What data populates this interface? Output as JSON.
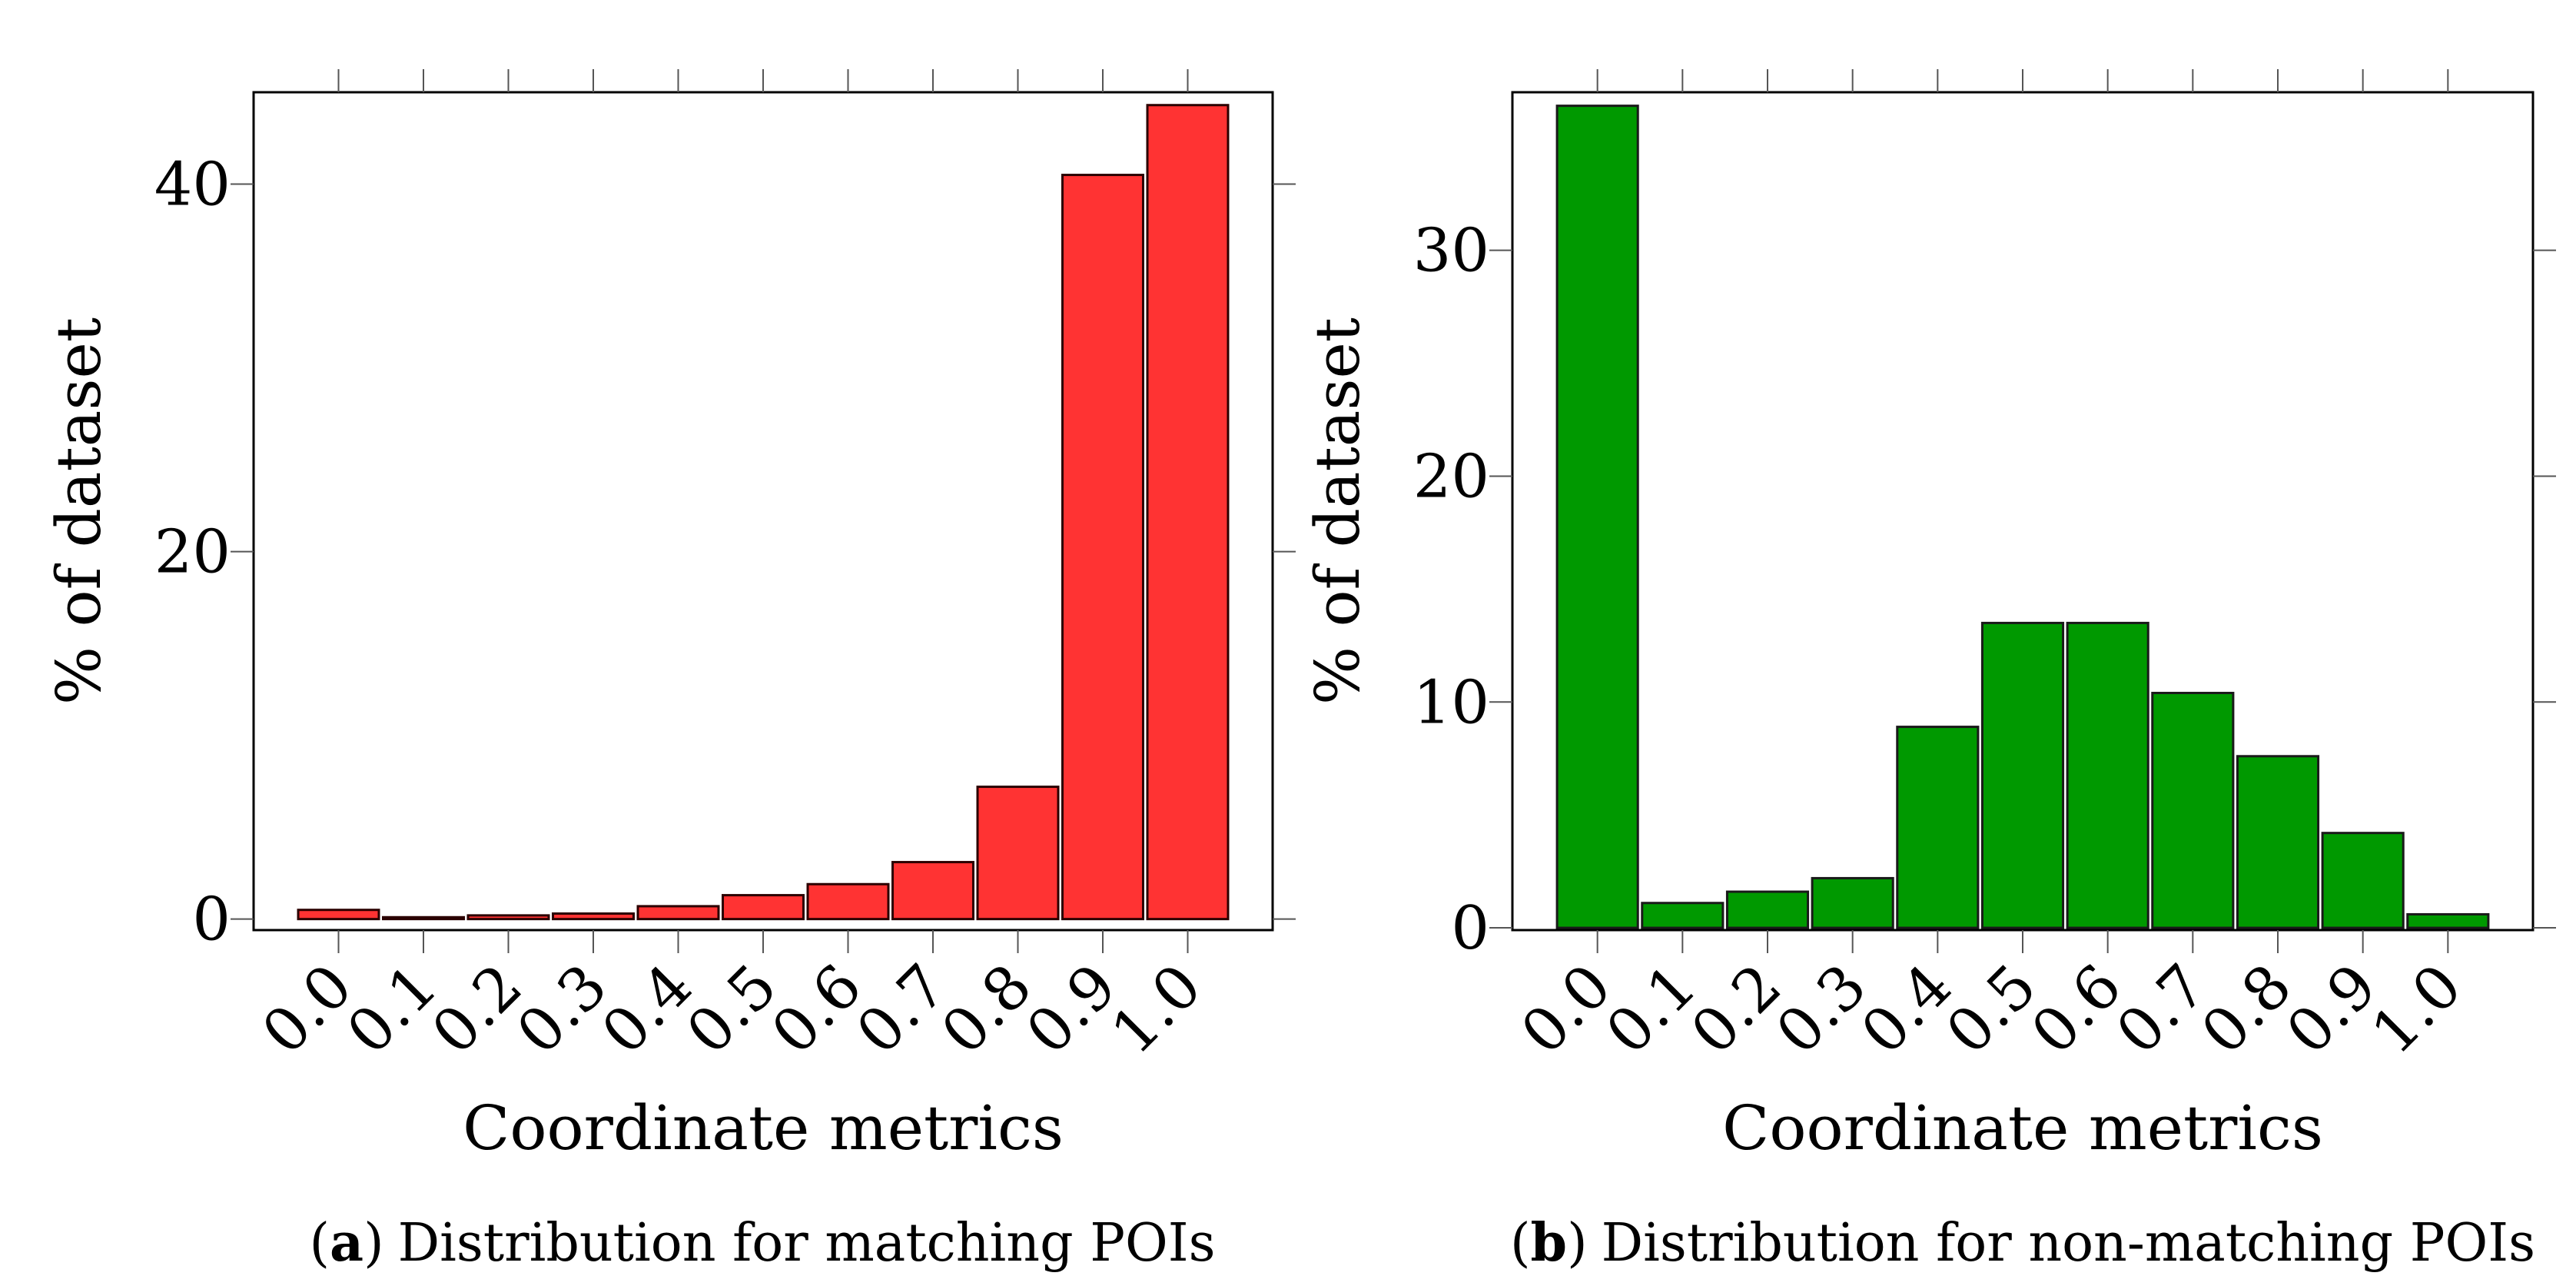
{
  "chart_data": [
    {
      "type": "bar",
      "panel_letter": "a",
      "caption_open": "(",
      "caption_close": ")",
      "caption_text": "Distribution for matching POIs",
      "title": "",
      "xlabel": "Coordinate metrics",
      "ylabel": "% of dataset",
      "categories": [
        "0.0",
        "0.1",
        "0.2",
        "0.3",
        "0.4",
        "0.5",
        "0.6",
        "0.7",
        "0.8",
        "0.9",
        "1.0"
      ],
      "values": [
        0.5,
        0.1,
        0.2,
        0.3,
        0.7,
        1.3,
        1.9,
        3.1,
        7.2,
        40.5,
        44.3
      ],
      "ylim": [
        -0.6,
        45
      ],
      "yticks": [
        0,
        20,
        40
      ],
      "grid": false,
      "bar_color": "#ff3333",
      "bar_edge_color": "#2b0000"
    },
    {
      "type": "bar",
      "panel_letter": "b",
      "caption_open": "(",
      "caption_close": ")",
      "caption_text": "Distribution for non-matching POIs",
      "title": "",
      "xlabel": "Coordinate metrics",
      "ylabel": "% of dataset",
      "categories": [
        "0.0",
        "0.1",
        "0.2",
        "0.3",
        "0.4",
        "0.5",
        "0.6",
        "0.7",
        "0.8",
        "0.9",
        "1.0"
      ],
      "values": [
        36.4,
        1.1,
        1.6,
        2.2,
        8.9,
        13.5,
        13.5,
        10.4,
        7.6,
        4.2,
        0.6
      ],
      "ylim": [
        -0.1,
        37
      ],
      "yticks": [
        0,
        10,
        20,
        30
      ],
      "grid": false,
      "bar_color": "#009900",
      "bar_edge_color": "#1a1a1a"
    }
  ]
}
